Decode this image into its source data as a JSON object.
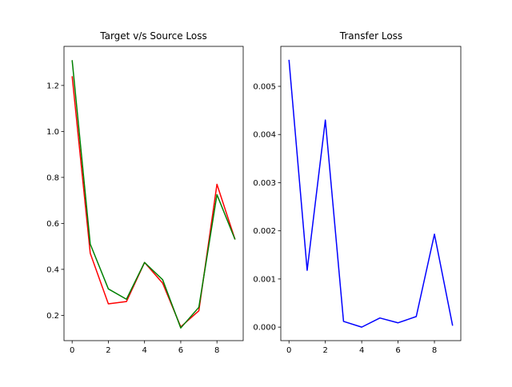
{
  "chart_data": [
    {
      "type": "line",
      "title": "Target v/s Source Loss",
      "xlabel": "",
      "ylabel": "",
      "x": [
        0,
        1,
        2,
        3,
        4,
        5,
        6,
        7,
        8,
        9
      ],
      "xlim": [
        -0.45,
        9.45
      ],
      "ylim": [
        0.09,
        1.37
      ],
      "xticks": [
        0,
        2,
        4,
        6,
        8
      ],
      "yticks": [
        0.2,
        0.4,
        0.6,
        0.8,
        1.0,
        1.2
      ],
      "ytick_labels": [
        "0.2",
        "0.4",
        "0.6",
        "0.8",
        "1.0",
        "1.2"
      ],
      "grid": false,
      "series": [
        {
          "color": "#ff0000",
          "values": [
            1.24,
            0.47,
            0.25,
            0.26,
            0.43,
            0.34,
            0.15,
            0.22,
            0.77,
            0.53
          ]
        },
        {
          "color": "#008000",
          "values": [
            1.31,
            0.51,
            0.315,
            0.27,
            0.43,
            0.355,
            0.145,
            0.235,
            0.725,
            0.53
          ]
        }
      ]
    },
    {
      "type": "line",
      "title": "Transfer Loss",
      "xlabel": "",
      "ylabel": "",
      "x": [
        0,
        1,
        2,
        3,
        4,
        5,
        6,
        7,
        8,
        9
      ],
      "xlim": [
        -0.45,
        9.45
      ],
      "ylim": [
        -0.00028,
        0.00583
      ],
      "xticks": [
        0,
        2,
        4,
        6,
        8
      ],
      "yticks": [
        0.0,
        0.001,
        0.002,
        0.003,
        0.004,
        0.005
      ],
      "ytick_labels": [
        "0.000",
        "0.001",
        "0.002",
        "0.003",
        "0.004",
        "0.005"
      ],
      "grid": false,
      "series": [
        {
          "color": "#0000ff",
          "values": [
            0.00555,
            0.00118,
            0.0043,
            0.00012,
            0.0,
            0.00019,
            9e-05,
            0.00022,
            0.00193,
            3e-05
          ]
        }
      ]
    }
  ]
}
